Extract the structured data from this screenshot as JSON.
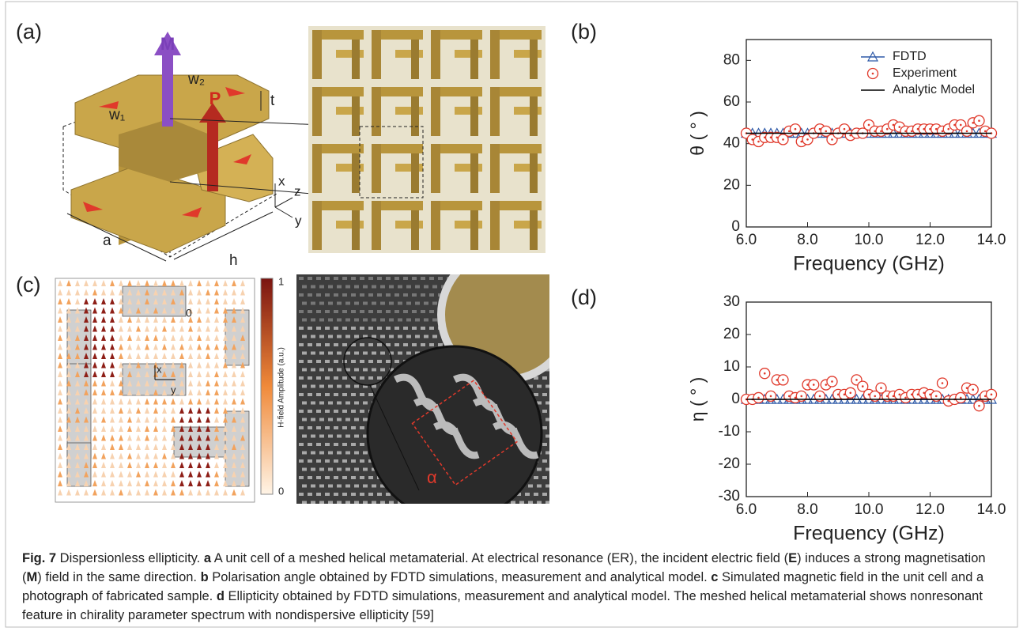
{
  "panel_labels": [
    "(a)",
    "(b)",
    "(c)",
    "(d)"
  ],
  "diagram_a": {
    "M": "M",
    "P": "P",
    "w1": "w₁",
    "w2": "w₂",
    "t": "t",
    "a": "a",
    "h": "h",
    "x": "x",
    "y": "y",
    "z": "z"
  },
  "diagram_c": {
    "bar_max": "1",
    "bar_min": "0",
    "bar_label": "H-field Amplitude (a.u.)",
    "origin": "0",
    "x": "x",
    "y": "y",
    "alpha": "α"
  },
  "chart_data": [
    {
      "type": "scatter",
      "ylabel": "θ ( ° )",
      "xlabel": "Frequency (GHz)",
      "xlim": [
        6,
        14
      ],
      "xticks": [
        {
          "value": 6,
          "label": "6.0"
        },
        {
          "value": 8,
          "label": "8.0"
        },
        {
          "value": 10,
          "label": "10.0"
        },
        {
          "value": 12,
          "label": "12.0"
        },
        {
          "value": 14,
          "label": "14.0"
        }
      ],
      "ylim": [
        0,
        90
      ],
      "yticks": [
        0,
        20,
        40,
        60,
        80
      ],
      "legend": "upper right",
      "series": [
        {
          "name": "FDTD",
          "color": "#2f5aa8",
          "marker": "triangle",
          "line": true,
          "x": [
            6,
            6.2,
            6.4,
            6.6,
            6.8,
            7,
            7.2,
            7.4,
            7.6,
            7.8,
            8,
            8.2,
            8.4,
            8.6,
            8.8,
            9,
            9.2,
            9.4,
            9.6,
            9.8,
            10,
            10.2,
            10.4,
            10.6,
            10.8,
            11,
            11.2,
            11.4,
            11.6,
            11.8,
            12,
            12.2,
            12.4,
            12.6,
            12.8,
            13,
            13.2,
            13.4,
            13.6,
            13.8,
            14
          ],
          "values": [
            45,
            45,
            45,
            45,
            45,
            45,
            45,
            45,
            45,
            45,
            45,
            45,
            45,
            45,
            45,
            45,
            45,
            45,
            45,
            45,
            45,
            45,
            45,
            45,
            45,
            45,
            45,
            45,
            45,
            45,
            45,
            45,
            45,
            45,
            45,
            45,
            45,
            45,
            45,
            45,
            45
          ]
        },
        {
          "name": "Experiment",
          "color": "#e0392b",
          "marker": "circle-dot",
          "line": false,
          "x": [
            6,
            6.2,
            6.4,
            6.6,
            6.8,
            7,
            7.2,
            7.4,
            7.6,
            7.8,
            8,
            8.2,
            8.4,
            8.6,
            8.8,
            9,
            9.2,
            9.4,
            9.6,
            9.8,
            10,
            10.2,
            10.4,
            10.6,
            10.8,
            11,
            11.2,
            11.4,
            11.6,
            11.8,
            12,
            12.2,
            12.4,
            12.6,
            12.8,
            13,
            13.2,
            13.4,
            13.6,
            13.8,
            14
          ],
          "values": [
            45,
            42,
            41,
            43,
            43,
            43,
            42,
            46,
            47,
            41,
            42,
            45,
            47,
            46,
            42,
            45,
            47,
            44,
            45,
            45,
            49,
            46,
            46,
            47,
            49,
            48,
            46,
            46,
            47,
            47,
            47,
            47,
            46,
            47,
            49,
            49,
            46,
            50,
            51,
            46,
            45
          ]
        },
        {
          "name": "Analytic Model",
          "color": "#000000",
          "marker": "none",
          "line": true,
          "x": [
            6,
            14
          ],
          "values": [
            45,
            45
          ]
        }
      ]
    },
    {
      "type": "scatter",
      "ylabel": "η ( ° )",
      "xlabel": "Frequency (GHz)",
      "xlim": [
        6,
        14
      ],
      "xticks": [
        {
          "value": 6,
          "label": "6.0"
        },
        {
          "value": 8,
          "label": "8.0"
        },
        {
          "value": 10,
          "label": "10.0"
        },
        {
          "value": 12,
          "label": "12.0"
        },
        {
          "value": 14,
          "label": "14.0"
        }
      ],
      "ylim": [
        -30,
        30
      ],
      "yticks": [
        -30,
        -20,
        -10,
        0,
        10,
        20,
        30
      ],
      "series": [
        {
          "color": "#2f5aa8",
          "marker": "triangle",
          "line": true,
          "x": [
            6,
            6.2,
            6.4,
            6.6,
            6.8,
            7,
            7.2,
            7.4,
            7.6,
            7.8,
            8,
            8.2,
            8.4,
            8.6,
            8.8,
            9,
            9.2,
            9.4,
            9.6,
            9.8,
            10,
            10.2,
            10.4,
            10.6,
            10.8,
            11,
            11.2,
            11.4,
            11.6,
            11.8,
            12,
            12.2,
            12.4,
            12.6,
            12.8,
            13,
            13.2,
            13.4,
            13.6,
            13.8,
            14
          ],
          "values": [
            0,
            0,
            0,
            0,
            0,
            0,
            0,
            0,
            0,
            0,
            0,
            0,
            0,
            0,
            0,
            0,
            0,
            0,
            0,
            0,
            0,
            0,
            0,
            0,
            0,
            0,
            0,
            0,
            0,
            0,
            0,
            0,
            0,
            0,
            0,
            0,
            0,
            0,
            0,
            0,
            0
          ]
        },
        {
          "color": "#e0392b",
          "marker": "circle-dot",
          "line": false,
          "x": [
            6,
            6.2,
            6.4,
            6.6,
            6.8,
            7,
            7.2,
            7.4,
            7.6,
            7.8,
            8,
            8.2,
            8.4,
            8.6,
            8.8,
            9,
            9.2,
            9.4,
            9.6,
            9.8,
            10,
            10.2,
            10.4,
            10.6,
            10.8,
            11,
            11.2,
            11.4,
            11.6,
            11.8,
            12,
            12.2,
            12.4,
            12.6,
            12.8,
            13,
            13.2,
            13.4,
            13.6,
            13.8,
            14
          ],
          "values": [
            0,
            0,
            0.5,
            8,
            1,
            6,
            6,
            1,
            0.5,
            1,
            4.5,
            4.5,
            1,
            4.5,
            5.5,
            1.5,
            1.5,
            2,
            6,
            4,
            1.5,
            1,
            3.5,
            1,
            1,
            1.5,
            0.5,
            1.5,
            1.5,
            2,
            1.5,
            1,
            5,
            -0.5,
            0,
            0.5,
            3.5,
            3,
            -2,
            1,
            1.5
          ]
        },
        {
          "color": "#000000",
          "marker": "none",
          "line": true,
          "x": [
            6,
            14
          ],
          "values": [
            0,
            0
          ]
        }
      ]
    }
  ],
  "caption": [
    {
      "text": "Fig. 7",
      "bold": true
    },
    {
      "text": " Dispersionless ellipticity. ",
      "bold": false
    },
    {
      "text": "a",
      "bold": true
    },
    {
      "text": " A unit cell of a meshed helical metamaterial. At electrical resonance (ER), the incident electric field (",
      "bold": false
    },
    {
      "text": "E",
      "bold": true
    },
    {
      "text": ") induces a strong magnetisation (",
      "bold": false
    },
    {
      "text": "M",
      "bold": true
    },
    {
      "text": ") field in the same direction. ",
      "bold": false
    },
    {
      "text": "b",
      "bold": true
    },
    {
      "text": " Polarisation angle obtained by FDTD simulations, measurement and analytical model. ",
      "bold": false
    },
    {
      "text": "c",
      "bold": true
    },
    {
      "text": " Simulated magnetic field in the unit cell and a photograph of fabricated sample. ",
      "bold": false
    },
    {
      "text": "d",
      "bold": true
    },
    {
      "text": " Ellipticity obtained by FDTD simulations, measurement and analytical model. The meshed helical metamaterial shows nonresonant feature in chirality parameter spectrum with nondispersive ellipticity [59]",
      "bold": false
    }
  ]
}
